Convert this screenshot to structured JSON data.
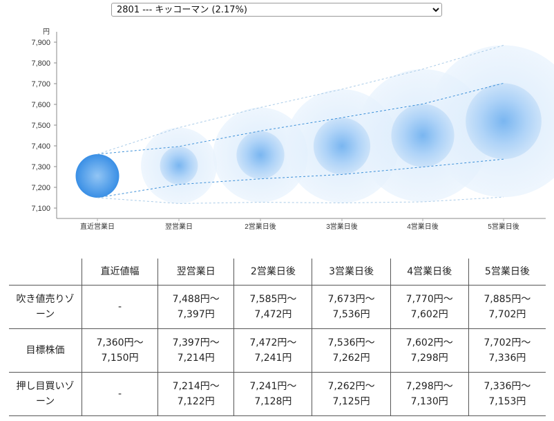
{
  "selector": {
    "value": "2801 --- キッコーマン (2.17%)"
  },
  "chart_data": {
    "type": "scatter",
    "unit_label": "円",
    "categories": [
      "直近営業日",
      "翌営業日",
      "2営業日後",
      "3営業日後",
      "4営業日後",
      "5営業日後"
    ],
    "y_ticks": [
      "7,100",
      "7,200",
      "7,300",
      "7,400",
      "7,500",
      "7,600",
      "7,700",
      "7,800",
      "7,900"
    ],
    "ylim": [
      7050,
      7950
    ],
    "center": [
      7255,
      7305,
      7356,
      7399,
      7450,
      7519
    ],
    "upper": [
      7360,
      7397,
      7472,
      7536,
      7602,
      7702
    ],
    "lower": [
      7150,
      7214,
      7241,
      7262,
      7298,
      7336
    ],
    "outer_upper": [
      7360,
      7488,
      7585,
      7673,
      7770,
      7885
    ],
    "outer_lower": [
      7150,
      7122,
      7128,
      7125,
      7130,
      7153
    ],
    "colors": {
      "core": "#1e7fe0",
      "halo": "#cfe4fb",
      "band": "#3b8fd8",
      "outer": "#a9cbe8"
    },
    "grid": false
  },
  "table": {
    "corner": "",
    "headers": [
      "直近値幅",
      "翌営業日",
      "2営業日後",
      "3営業日後",
      "4営業日後",
      "5営業日後"
    ],
    "rows": [
      {
        "label": [
          "吹き値売りゾ",
          "ーン"
        ],
        "cells": [
          [
            "-"
          ],
          [
            "7,488円〜",
            "7,397円"
          ],
          [
            "7,585円〜",
            "7,472円"
          ],
          [
            "7,673円〜",
            "7,536円"
          ],
          [
            "7,770円〜",
            "7,602円"
          ],
          [
            "7,885円〜",
            "7,702円"
          ]
        ]
      },
      {
        "label": [
          "目標株価"
        ],
        "cells": [
          [
            "7,360円〜",
            "7,150円"
          ],
          [
            "7,397円〜",
            "7,214円"
          ],
          [
            "7,472円〜",
            "7,241円"
          ],
          [
            "7,536円〜",
            "7,262円"
          ],
          [
            "7,602円〜",
            "7,298円"
          ],
          [
            "7,702円〜",
            "7,336円"
          ]
        ]
      },
      {
        "label": [
          "押し目買いゾ",
          "ーン"
        ],
        "cells": [
          [
            "-"
          ],
          [
            "7,214円〜",
            "7,122円"
          ],
          [
            "7,241円〜",
            "7,128円"
          ],
          [
            "7,262円〜",
            "7,125円"
          ],
          [
            "7,298円〜",
            "7,130円"
          ],
          [
            "7,336円〜",
            "7,153円"
          ]
        ]
      }
    ]
  }
}
